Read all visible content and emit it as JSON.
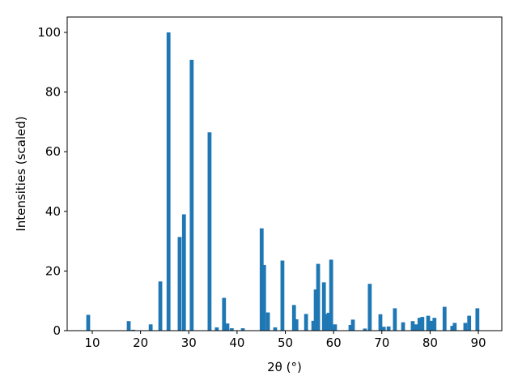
{
  "chart_data": {
    "type": "bar",
    "xlabel": "2θ (°)",
    "ylabel": "Intensities (scaled)",
    "color": "#1f77b4",
    "x": [
      9.16,
      17.55,
      18.5,
      22.1,
      24.1,
      25.8,
      28.1,
      29.0,
      30.6,
      34.3,
      35.8,
      37.3,
      38.0,
      38.9,
      41.2,
      45.1,
      45.6,
      46.4,
      47.9,
      49.4,
      51.8,
      52.3,
      54.3,
      55.8,
      56.3,
      56.8,
      58.0,
      58.6,
      59.0,
      59.5,
      60.3,
      63.5,
      64.0,
      66.5,
      67.5,
      69.7,
      70.4,
      71.4,
      72.7,
      74.4,
      76.4,
      77.1,
      77.8,
      78.4,
      79.6,
      80.3,
      80.9,
      83.0,
      84.6,
      85.1,
      87.3,
      88.1,
      89.8
    ],
    "values": [
      5.3,
      3.2,
      0.3,
      2.1,
      16.5,
      100,
      31.4,
      39,
      90.8,
      66.5,
      1.1,
      11,
      2.4,
      0.8,
      0.8,
      34.3,
      22,
      6.1,
      1.1,
      23.5,
      8.6,
      3.8,
      5.6,
      3.3,
      13.8,
      22.4,
      16.2,
      5.6,
      6,
      23.8,
      2.1,
      1.9,
      3.7,
      0.7,
      15.7,
      5.5,
      1.3,
      1.4,
      7.5,
      2.8,
      3.2,
      2.1,
      4.3,
      4.6,
      5,
      3.3,
      4.3,
      8,
      1.6,
      2.6,
      2.6,
      5,
      7.5
    ],
    "xlim": [
      4.8,
      94.86
    ],
    "ylim": [
      0,
      105.16
    ],
    "xticks": [
      10,
      20,
      30,
      40,
      50,
      60,
      70,
      80,
      90
    ],
    "yticks": [
      0,
      20,
      40,
      60,
      80,
      100
    ]
  }
}
